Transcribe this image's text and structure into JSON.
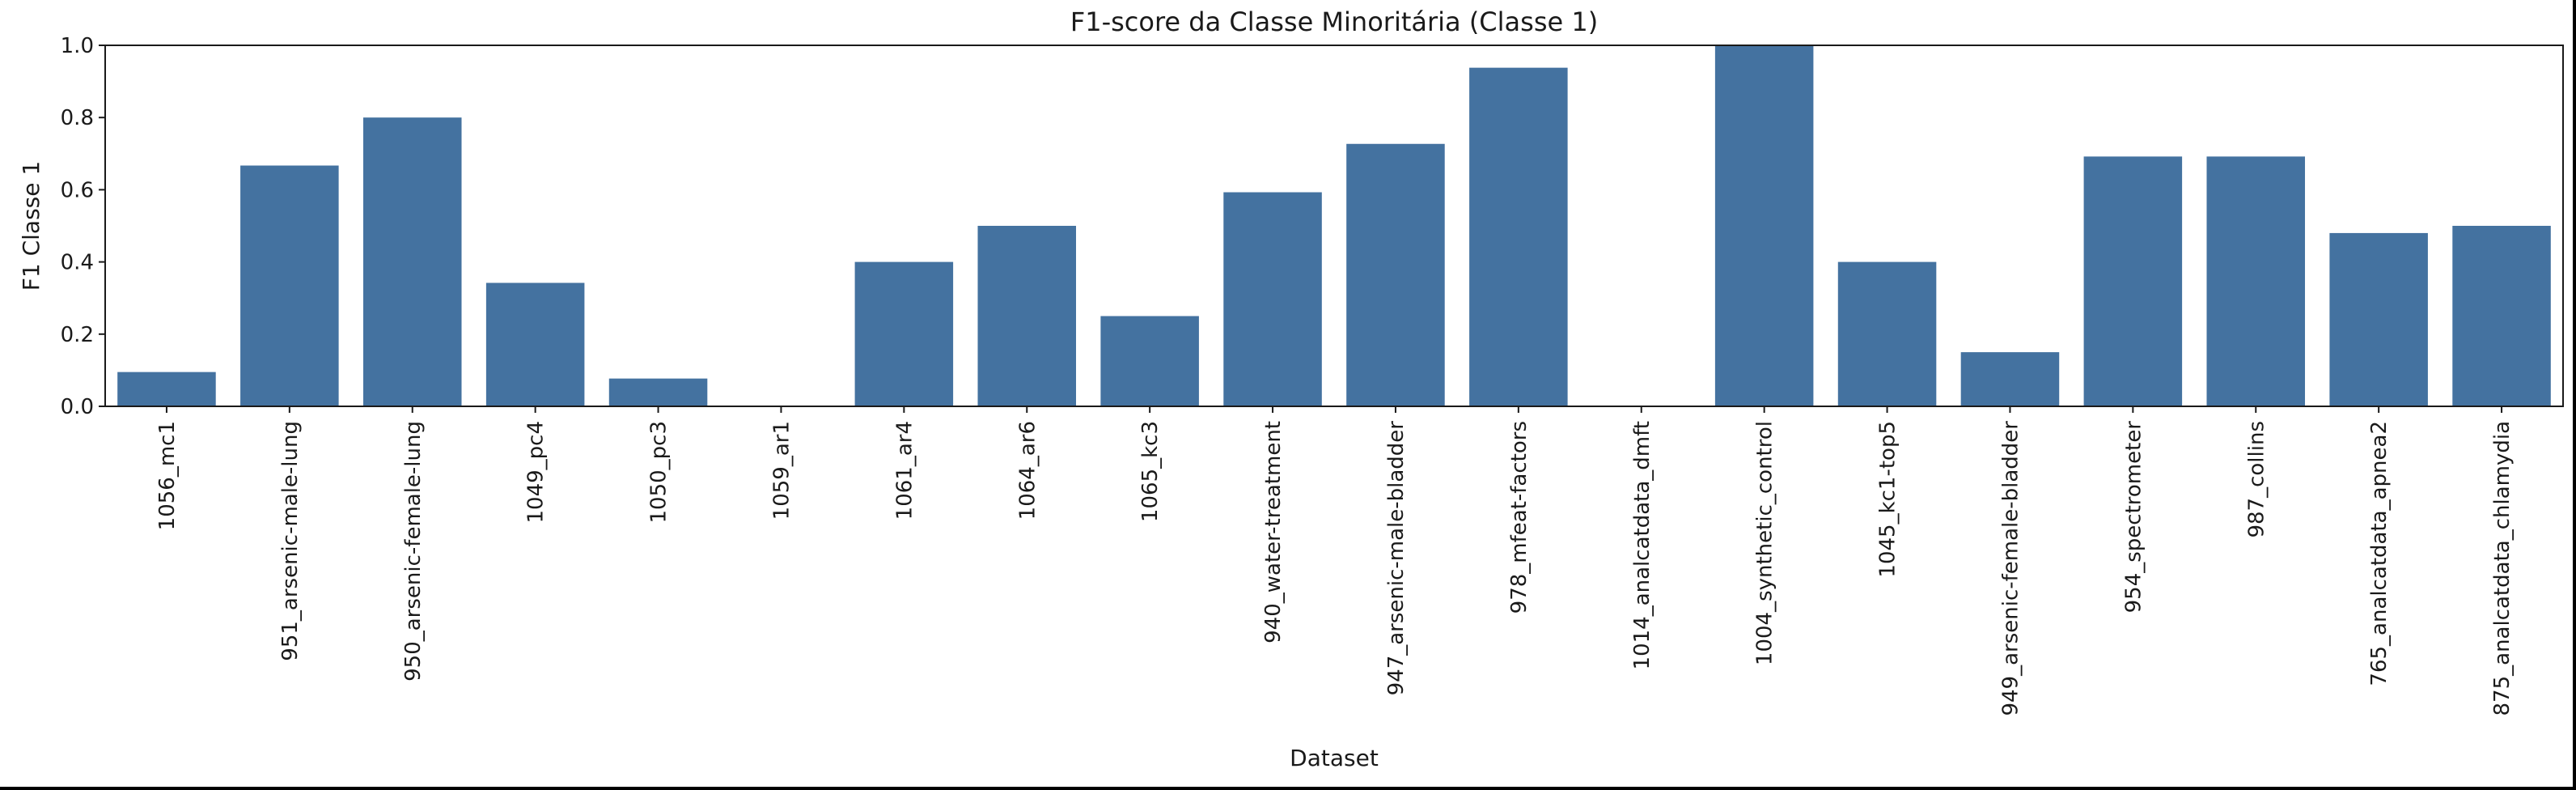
{
  "chart_data": {
    "type": "bar",
    "title": "F1-score da Classe Minoritária (Classe 1)",
    "xlabel": "Dataset",
    "ylabel": "F1 Classe 1",
    "ylim": [
      0,
      1.0
    ],
    "yticks": [
      "0.0",
      "0.2",
      "0.4",
      "0.6",
      "0.8",
      "1.0"
    ],
    "grid": false,
    "bar_color": "#4472a0",
    "categories": [
      "1056_mc1",
      "951_arsenic-male-lung",
      "950_arsenic-female-lung",
      "1049_pc4",
      "1050_pc3",
      "1059_ar1",
      "1061_ar4",
      "1064_ar6",
      "1065_kc3",
      "940_water-treatment",
      "947_arsenic-male-bladder",
      "978_mfeat-factors",
      "1014_analcatdata_dmft",
      "1004_synthetic_control",
      "1045_kc1-top5",
      "949_arsenic-female-bladder",
      "954_spectrometer",
      "987_collins",
      "765_analcatdata_apnea2",
      "875_analcatdata_chlamydia"
    ],
    "values": [
      0.095,
      0.667,
      0.8,
      0.342,
      0.077,
      0.0,
      0.4,
      0.5,
      0.25,
      0.593,
      0.727,
      0.938,
      0.0,
      1.0,
      0.4,
      0.15,
      0.692,
      0.692,
      0.48,
      0.5
    ]
  }
}
